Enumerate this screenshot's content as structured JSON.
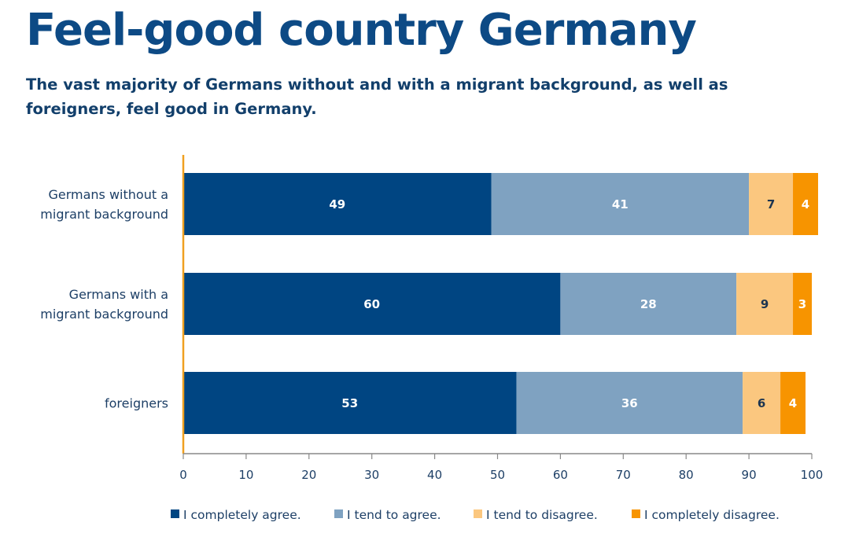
{
  "title": "Feel-good country Germany",
  "subtitle": "The vast majority of Germans without and with a migrant background, as well as foreigners, feel good in Germany.",
  "chart_data": {
    "type": "bar",
    "orientation": "horizontal",
    "stacked": true,
    "title": "Feel-good country Germany",
    "subtitle": "The vast majority of Germans without and with a migrant background, as well as foreigners, feel good in Germany.",
    "categories": [
      [
        "Germans without a",
        "migrant background"
      ],
      [
        "Germans with a",
        "migrant background"
      ],
      [
        "foreigners"
      ]
    ],
    "series": [
      {
        "name": "I completely agree.",
        "color": "#004582",
        "label_color": "#ffffff",
        "values": [
          49,
          60,
          53
        ]
      },
      {
        "name": "I tend to agree.",
        "color": "#7fa2c1",
        "label_color": "#ffffff",
        "values": [
          41,
          28,
          36
        ]
      },
      {
        "name": "I tend to disagree.",
        "color": "#fbc77f",
        "label_color": "#1d3550",
        "values": [
          7,
          9,
          6
        ]
      },
      {
        "name": "I completely disagree.",
        "color": "#f79400",
        "label_color": "#ffffff",
        "values": [
          4,
          3,
          4
        ]
      }
    ],
    "xlabel": "",
    "ylabel": "",
    "xlim": [
      0,
      100
    ],
    "xticks": [
      0,
      10,
      20,
      30,
      40,
      50,
      60,
      70,
      80,
      90,
      100
    ],
    "grid": false,
    "legend": "bottom",
    "axis_color": "#888888",
    "baseline_color": "#f0a020"
  }
}
